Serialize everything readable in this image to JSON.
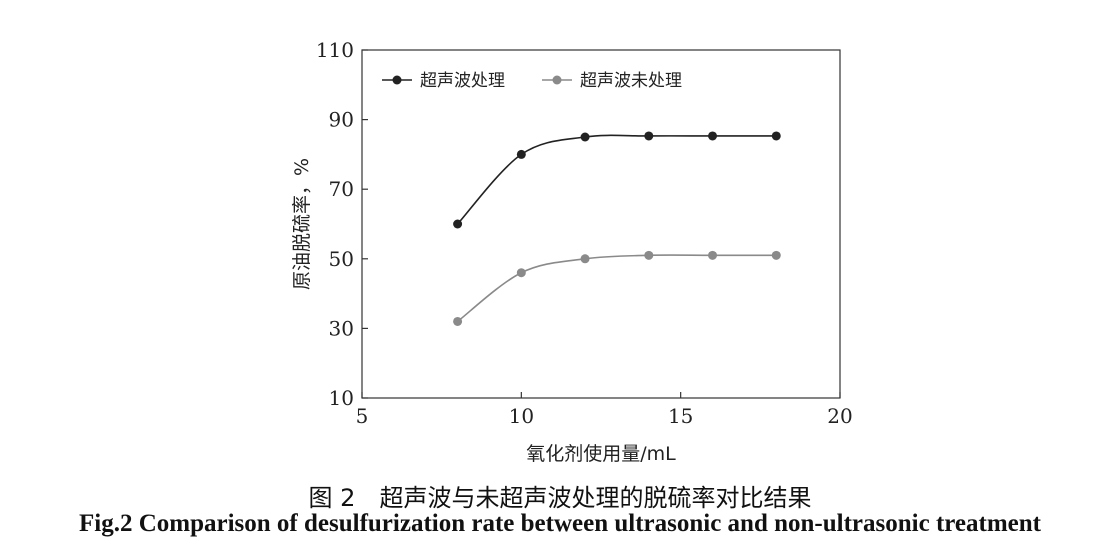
{
  "chart_data": {
    "type": "line",
    "xlabel": "氧化剂使用量/mL",
    "ylabel": "原油脱硫率，%",
    "xlim": [
      5,
      20
    ],
    "ylim": [
      10,
      110
    ],
    "xticks": [
      5,
      10,
      15,
      20
    ],
    "yticks": [
      10,
      30,
      50,
      70,
      90,
      110
    ],
    "grid": false,
    "legend_position": "top-left",
    "series": [
      {
        "name": "超声波处理",
        "color": "#222222",
        "x": [
          8,
          10,
          12,
          14,
          16,
          18
        ],
        "y": [
          60,
          80,
          85,
          85.3,
          85.3,
          85.3
        ]
      },
      {
        "name": "超声波未处理",
        "color": "#8a8a8a",
        "x": [
          8,
          10,
          12,
          14,
          16,
          18
        ],
        "y": [
          32,
          46,
          50,
          51,
          51,
          51
        ]
      }
    ]
  },
  "caption": {
    "cn": "图 2　超声波与未超声波处理的脱硫率对比结果",
    "en": "Fig.2 Comparison of desulfurization rate between ultrasonic and non-ultrasonic treatment"
  }
}
